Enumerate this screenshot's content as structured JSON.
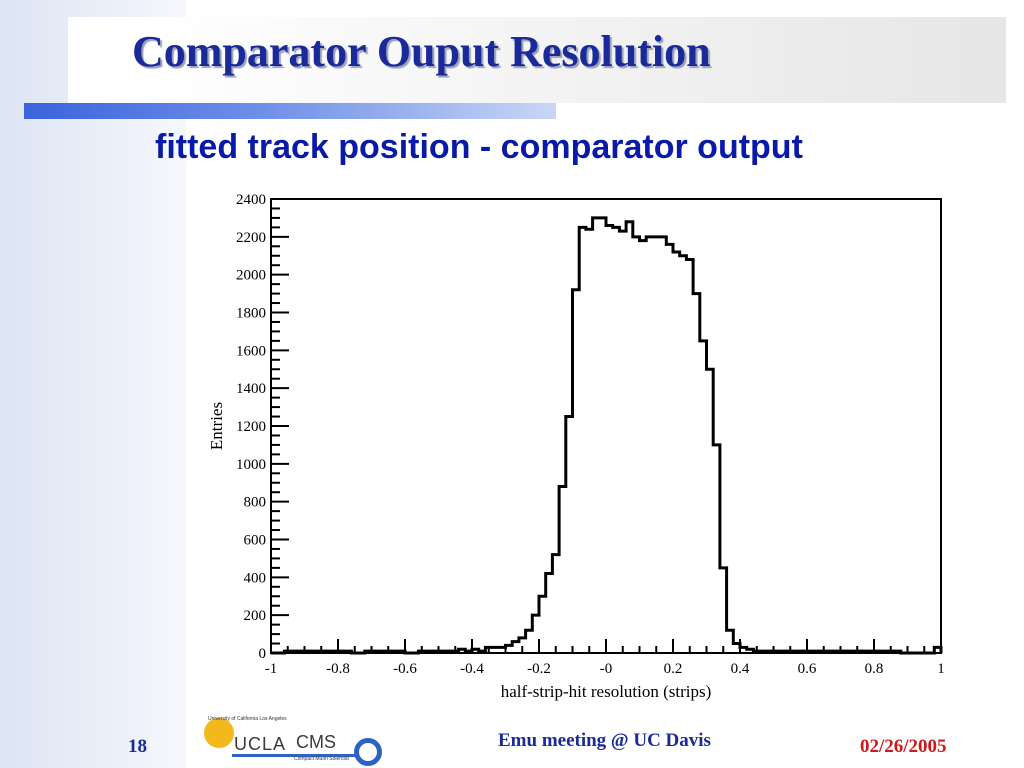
{
  "slide": {
    "title": "Comparator Ouput Resolution",
    "subtitle": "fitted track position - comparator output",
    "page_number": "18",
    "footer_center": "Emu meeting @ UC Davis",
    "footer_date": "02/26/2005",
    "logo": {
      "university_text": "University of California Los Angeles",
      "ucla": "UCLA",
      "cms": "CMS",
      "cms_sub": "Compact Muon Solenoid"
    },
    "colors": {
      "title": "#1a2a99",
      "subtitle": "#0a1aa8",
      "date": "#cc1a1a",
      "accent_bar": "#3a63de",
      "histogram_line": "#000000"
    }
  },
  "chart_data": {
    "type": "histogram",
    "title": "",
    "xlabel": "half-strip-hit resolution (strips)",
    "ylabel": "Entries",
    "xlim": [
      -1,
      1
    ],
    "ylim": [
      0,
      2400
    ],
    "xticks": [
      "-1",
      "-0.8",
      "-0.6",
      "-0.4",
      "-0.2",
      "-0",
      "0.2",
      "0.4",
      "0.6",
      "0.8",
      "1"
    ],
    "yticks": [
      "0",
      "200",
      "400",
      "600",
      "800",
      "1000",
      "1200",
      "1400",
      "1600",
      "1800",
      "2000",
      "2200",
      "2400"
    ],
    "grid": false,
    "bin_width": 0.02,
    "bin_edges_start": -1,
    "series": [
      {
        "values": [
          0,
          0,
          10,
          10,
          10,
          10,
          10,
          10,
          10,
          10,
          10,
          10,
          0,
          0,
          10,
          10,
          10,
          10,
          10,
          10,
          0,
          0,
          10,
          10,
          10,
          10,
          10,
          10,
          20,
          10,
          20,
          10,
          30,
          30,
          30,
          40,
          60,
          80,
          120,
          200,
          300,
          420,
          520,
          880,
          1250,
          1920,
          2250,
          2240,
          2300,
          2300,
          2260,
          2250,
          2230,
          2280,
          2200,
          2180,
          2200,
          2200,
          2200,
          2160,
          2120,
          2100,
          2080,
          1900,
          1650,
          1500,
          1100,
          450,
          120,
          50,
          30,
          20,
          10,
          10,
          10,
          10,
          10,
          10,
          10,
          10,
          10,
          10,
          10,
          10,
          10,
          10,
          10,
          10,
          10,
          10,
          10,
          10,
          10,
          10,
          0,
          0,
          0,
          0,
          0,
          30
        ]
      }
    ]
  }
}
